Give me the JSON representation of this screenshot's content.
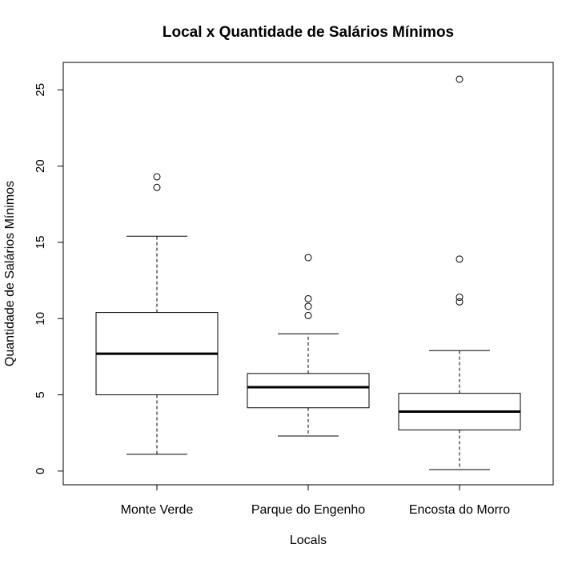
{
  "chart_data": {
    "type": "boxplot",
    "title": "Local x Quantidade de Salários Mínimos",
    "xlabel": "Locals",
    "ylabel": "Quantidade de Salários Mínimos",
    "ylim": [
      -0.9,
      26.8
    ],
    "yticks": [
      0,
      5,
      10,
      15,
      20,
      25
    ],
    "grid": false,
    "categories": [
      "Monte Verde",
      "Parque do Engenho",
      "Encosta do Morro"
    ],
    "boxes": [
      {
        "min": 1.1,
        "q1": 5.0,
        "median": 7.7,
        "q3": 10.4,
        "max": 15.4,
        "outliers": [
          18.6,
          19.3
        ]
      },
      {
        "min": 2.3,
        "q1": 4.15,
        "median": 5.5,
        "q3": 6.4,
        "max": 9.0,
        "outliers": [
          10.2,
          10.8,
          11.3,
          14.0
        ]
      },
      {
        "min": 0.1,
        "q1": 2.7,
        "median": 3.9,
        "q3": 5.1,
        "max": 7.9,
        "outliers": [
          11.1,
          11.4,
          13.9,
          25.7
        ]
      }
    ]
  }
}
